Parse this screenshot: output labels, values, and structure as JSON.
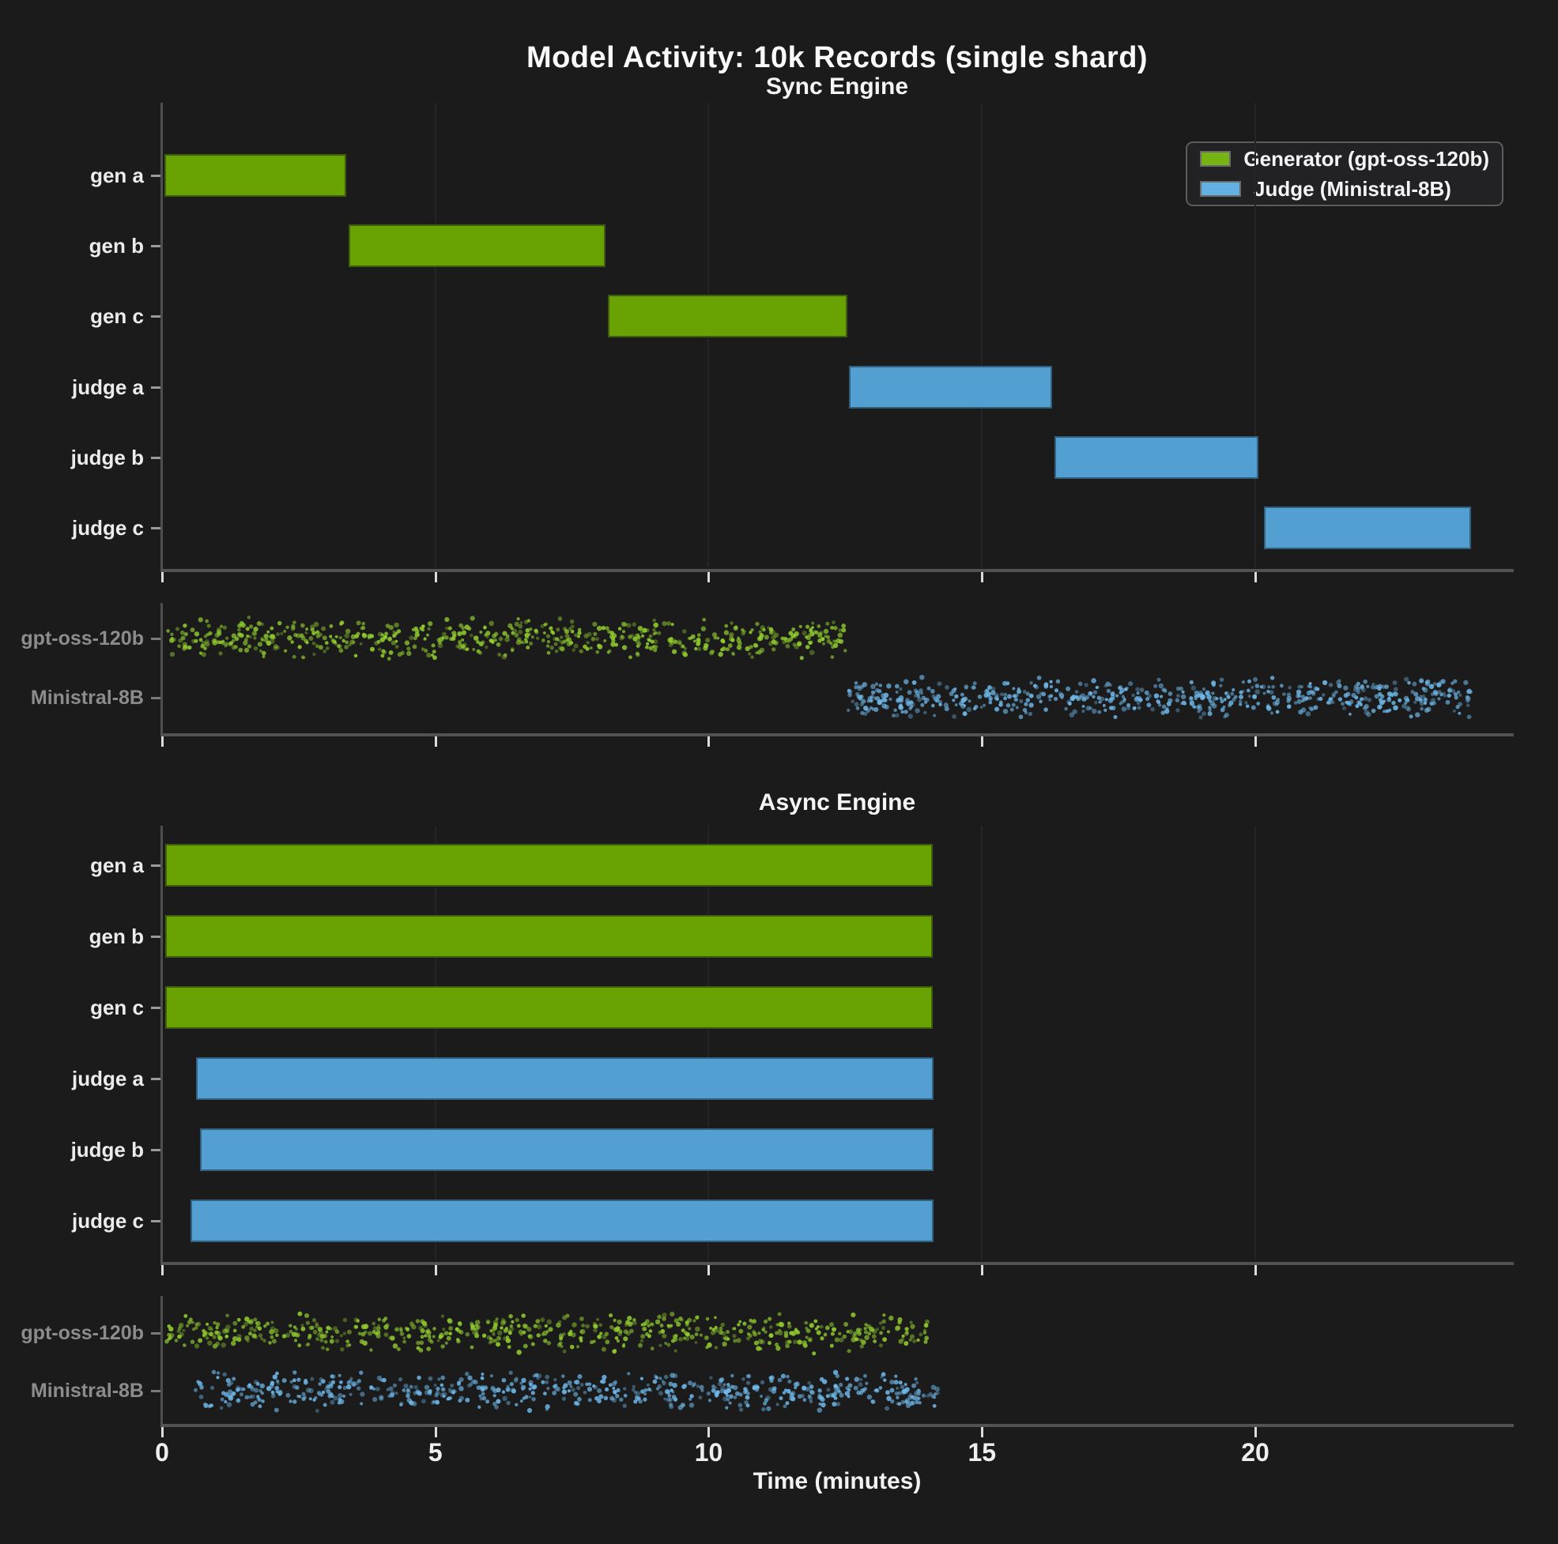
{
  "figure": {
    "title": "Model Activity: 10k Records (single shard)",
    "xlabel": "Time (minutes)"
  },
  "axis": {
    "xmin": 0,
    "xmax": 24.7,
    "ticks": [
      0,
      5,
      10,
      15,
      20
    ],
    "grid_ticks": [
      5,
      10,
      15,
      20
    ],
    "unit": "minutes"
  },
  "colors": {
    "background": "#1b1b1c",
    "generator": "#69a303",
    "judge": "#539fd1",
    "generator_legend": "#76b414",
    "judge_legend": "#63b0e3",
    "generator_dot": "#93ce2e",
    "judge_dot": "#6fb9ea",
    "text": "#f0f0f0",
    "muted_text": "#8c8c8c",
    "spine": "#4e4e4e",
    "grid": "#252528"
  },
  "legend": {
    "items": [
      {
        "label": "Generator (gpt-oss-120b)",
        "series": "generator"
      },
      {
        "label": "Judge (Ministral-8B)",
        "series": "judge"
      }
    ]
  },
  "chart_data": [
    {
      "id": "sync-gantt",
      "type": "gantt",
      "title": "Sync Engine",
      "unit": "minutes",
      "rows": [
        "gen a",
        "gen b",
        "gen c",
        "judge a",
        "judge b",
        "judge c"
      ],
      "bars": [
        {
          "row": "gen a",
          "series": "generator",
          "start": 0.05,
          "end": 3.37
        },
        {
          "row": "gen b",
          "series": "generator",
          "start": 3.41,
          "end": 8.12
        },
        {
          "row": "gen c",
          "series": "generator",
          "start": 8.16,
          "end": 12.54
        },
        {
          "row": "judge a",
          "series": "judge",
          "start": 12.56,
          "end": 16.28
        },
        {
          "row": "judge b",
          "series": "judge",
          "start": 16.33,
          "end": 20.06
        },
        {
          "row": "judge c",
          "series": "judge",
          "start": 20.16,
          "end": 23.95
        }
      ]
    },
    {
      "id": "sync-strip",
      "type": "strip-scatter",
      "unit": "minutes",
      "rows": [
        {
          "label": "gpt-oss-120b",
          "series": "generator",
          "x_start": 0.1,
          "x_end": 12.5,
          "approx_points": 620
        },
        {
          "label": "Ministral-8B",
          "series": "judge",
          "x_start": 12.55,
          "x_end": 23.95,
          "approx_points": 620
        }
      ]
    },
    {
      "id": "async-gantt",
      "type": "gantt",
      "title": "Async Engine",
      "unit": "minutes",
      "rows": [
        "gen a",
        "gen b",
        "gen c",
        "judge a",
        "judge b",
        "judge c"
      ],
      "bars": [
        {
          "row": "gen a",
          "series": "generator",
          "start": 0.06,
          "end": 14.1
        },
        {
          "row": "gen b",
          "series": "generator",
          "start": 0.06,
          "end": 14.1
        },
        {
          "row": "gen c",
          "series": "generator",
          "start": 0.06,
          "end": 14.1
        },
        {
          "row": "judge a",
          "series": "judge",
          "start": 0.62,
          "end": 14.12
        },
        {
          "row": "judge b",
          "series": "judge",
          "start": 0.7,
          "end": 14.12
        },
        {
          "row": "judge c",
          "series": "judge",
          "start": 0.52,
          "end": 14.12
        }
      ]
    },
    {
      "id": "async-strip",
      "type": "strip-scatter",
      "unit": "minutes",
      "rows": [
        {
          "label": "gpt-oss-120b",
          "series": "generator",
          "x_start": 0.08,
          "x_end": 14.0,
          "approx_points": 620
        },
        {
          "label": "Ministral-8B",
          "series": "judge",
          "x_start": 0.6,
          "x_end": 14.2,
          "approx_points": 620
        }
      ]
    }
  ]
}
